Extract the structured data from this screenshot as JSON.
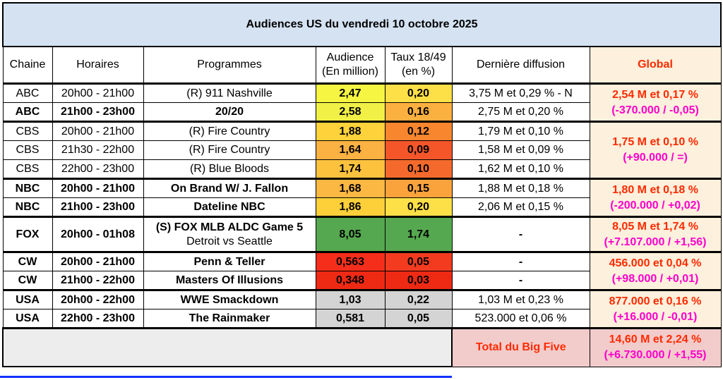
{
  "title": "Audiences US du vendredi 10 octobre 2025",
  "headers": {
    "chaine": "Chaine",
    "horaires": "Horaires",
    "programmes": "Programmes",
    "audience_l1": "Audience",
    "audience_l2": "(En million)",
    "taux_l1": "Taux 18/49",
    "taux_l2": "(en %)",
    "derniere": "Dernière diffusion",
    "global": "Global"
  },
  "rows": [
    {
      "chaine": "ABC",
      "horaires": "20h00 - 21h00",
      "programme": "(R) 911 Nashville",
      "audience": "2,47",
      "taux": "0,20",
      "derniere": "3,75 M et 0,29 % - N",
      "aud_color": "#f5f542",
      "taux_color": "#fde047"
    },
    {
      "chaine": "ABC",
      "horaires": "21h00 - 23h00",
      "programme": "20/20",
      "audience": "2,58",
      "taux": "0,16",
      "derniere": "2,75 M et 0,20 %",
      "aud_color": "#f0f046",
      "taux_color": "#fbb040"
    },
    {
      "chaine": "CBS",
      "horaires": "20h00 - 21h00",
      "programme": "(R) Fire Country",
      "audience": "1,88",
      "taux": "0,12",
      "derniere": "1,79 M et 0,10 %",
      "aud_color": "#fdd23a",
      "taux_color": "#f8862e"
    },
    {
      "chaine": "CBS",
      "horaires": "21h30 - 22h00",
      "programme": "(R) Fire Country",
      "audience": "1,64",
      "taux": "0,09",
      "derniere": "1,58 M et 0,09 %",
      "aud_color": "#fbb242",
      "taux_color": "#f4562a"
    },
    {
      "chaine": "CBS",
      "horaires": "22h00 - 23h00",
      "programme": "(R) Blue Bloods",
      "audience": "1,74",
      "taux": "0,10",
      "derniere": "1,62 M et 0,10 %",
      "aud_color": "#fcc23e",
      "taux_color": "#f56a2c"
    },
    {
      "chaine": "NBC",
      "horaires": "20h00 - 21h00",
      "programme": "On Brand W/ J. Fallon",
      "audience": "1,68",
      "taux": "0,15",
      "derniere": "1,88 M et 0,18 %",
      "aud_color": "#fbb842",
      "taux_color": "#faa33c"
    },
    {
      "chaine": "NBC",
      "horaires": "21h00 - 23h00",
      "programme": "Dateline NBC",
      "audience": "1,86",
      "taux": "0,20",
      "derniere": "2,06 M et 0,15 %",
      "aud_color": "#fdd03a",
      "taux_color": "#fde047"
    },
    {
      "chaine": "FOX",
      "horaires": "20h00 - 01h08",
      "programme": "(S) FOX MLB ALDC Game 5",
      "programme_sub": "Detroit vs Seattle",
      "audience": "8,05",
      "taux": "1,74",
      "derniere": "-",
      "aud_color": "#55a84f",
      "taux_color": "#55a84f"
    },
    {
      "chaine": "CW",
      "horaires": "20h00 - 21h00",
      "programme": "Penn & Teller",
      "audience": "0,563",
      "taux": "0,05",
      "derniere": "-",
      "aud_color": "#f52e1c",
      "taux_color": "#f33b20"
    },
    {
      "chaine": "CW",
      "horaires": "21h00 - 22h00",
      "programme": "Masters Of Illusions",
      "audience": "0,348",
      "taux": "0,03",
      "derniere": "-",
      "aud_color": "#ee2a14",
      "taux_color": "#ee2a14"
    },
    {
      "chaine": "USA",
      "horaires": "20h00 - 22h00",
      "programme": "WWE Smackdown",
      "audience": "1,03",
      "taux": "0,22",
      "derniere": "1,03 M et 0,23 %",
      "aud_color": "#d4d4d4",
      "taux_color": "#d4d4d4"
    },
    {
      "chaine": "USA",
      "horaires": "22h00 - 23h00",
      "programme": "The Rainmaker",
      "audience": "0,581",
      "taux": "0,05",
      "derniere": "523.000 et 0,06 %",
      "aud_color": "#d4d4d4",
      "taux_color": "#d4d4d4"
    }
  ],
  "globals": [
    {
      "line1": "2,54 M et 0,17 %",
      "line2": "(-370.000 / -0,05)"
    },
    {
      "line1": "1,75 M et 0,10 %",
      "line2": "(+90.000 / =)"
    },
    {
      "line1": "1,80 M et 0,18 %",
      "line2": "(-200.000 / +0,02)"
    },
    {
      "line1": "8,05 M et 1,74 %",
      "line2": "(+7.107.000 / +1,56)"
    },
    {
      "line1": "456.000 et 0,04 %",
      "line2": "(+98.000 / +0,01)"
    },
    {
      "line1": "877.000 et 0,16 %",
      "line2": "(+16.000 / -0,01)"
    }
  ],
  "total": {
    "label": "Total du Big Five",
    "line1": "14,60 M et 2,24 %",
    "line2": "(+6.730.000 / +1,55)"
  }
}
